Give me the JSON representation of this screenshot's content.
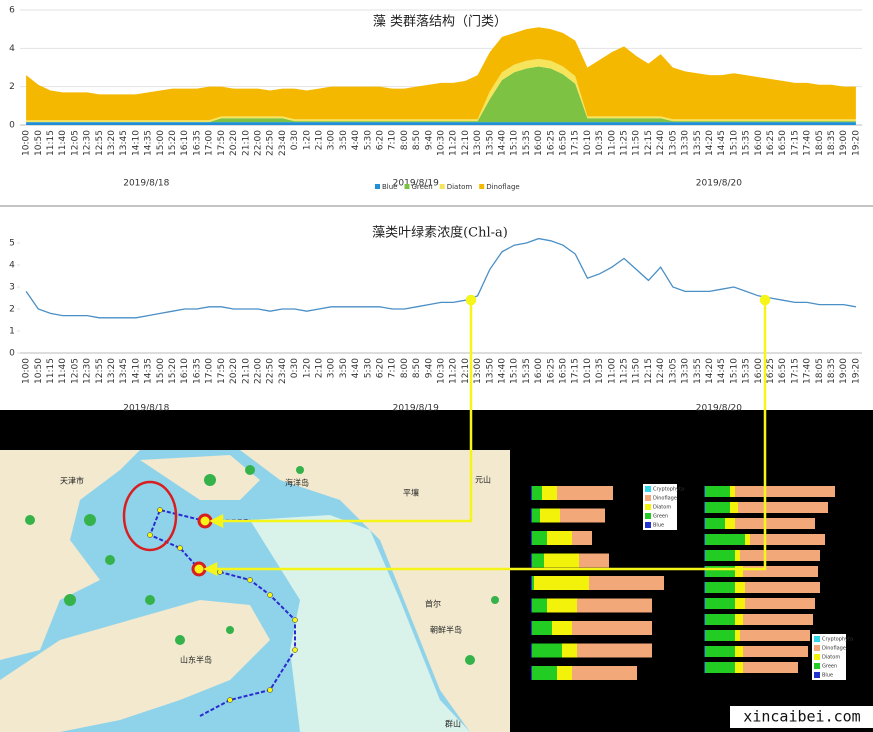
{
  "chart_data": [
    {
      "type": "area",
      "title": "藻 类群落结构（门类）",
      "categories": [
        "10:00",
        "10:50",
        "11:15",
        "11:40",
        "12:05",
        "12:30",
        "12:55",
        "13:20",
        "13:45",
        "14:10",
        "14:35",
        "15:00",
        "15:20",
        "16:10",
        "16:35",
        "17:00",
        "17:50",
        "20:20",
        "21:10",
        "22:00",
        "22:50",
        "23:40",
        "0:30",
        "1:20",
        "2:10",
        "3:00",
        "3:50",
        "4:40",
        "5:30",
        "6:20",
        "7:10",
        "8:00",
        "8:50",
        "9:40",
        "10:30",
        "11:20",
        "12:10",
        "13:00",
        "13:50",
        "14:40",
        "15:10",
        "15:35",
        "16:00",
        "16:25",
        "16:50",
        "17:15",
        "10:10",
        "10:35",
        "11:00",
        "11:25",
        "11:50",
        "12:15",
        "12:40",
        "13:05",
        "13:30",
        "13:55",
        "14:20",
        "14:45",
        "15:10",
        "15:35",
        "16:00",
        "16:25",
        "16:50",
        "17:15",
        "17:40",
        "18:05",
        "18:35",
        "19:00",
        "19:20"
      ],
      "date_labels": [
        "2019/8/18",
        "2019/8/19",
        "2019/8/20"
      ],
      "series": [
        {
          "name": "Blue",
          "color": "#1f8fd8",
          "values": [
            0.15,
            0.15,
            0.15,
            0.15,
            0.15,
            0.15,
            0.15,
            0.15,
            0.15,
            0.15,
            0.15,
            0.15,
            0.15,
            0.15,
            0.15,
            0.15,
            0.15,
            0.15,
            0.15,
            0.15,
            0.15,
            0.15,
            0.15,
            0.15,
            0.15,
            0.15,
            0.15,
            0.15,
            0.15,
            0.15,
            0.15,
            0.15,
            0.15,
            0.15,
            0.15,
            0.15,
            0.15,
            0.15,
            0.15,
            0.15,
            0.15,
            0.15,
            0.15,
            0.15,
            0.15,
            0.15,
            0.15,
            0.15,
            0.15,
            0.15,
            0.15,
            0.15,
            0.15,
            0.15,
            0.15,
            0.15,
            0.15,
            0.15,
            0.15,
            0.15,
            0.15,
            0.15,
            0.15,
            0.15,
            0.15,
            0.15,
            0.15,
            0.15,
            0.15
          ]
        },
        {
          "name": "Green",
          "color": "#7dc242",
          "values": [
            0,
            0,
            0,
            0,
            0,
            0,
            0,
            0,
            0,
            0,
            0,
            0,
            0,
            0,
            0,
            0,
            0.2,
            0.2,
            0.2,
            0.2,
            0.2,
            0.2,
            0.05,
            0.05,
            0.05,
            0.05,
            0.05,
            0.05,
            0.05,
            0.05,
            0.05,
            0.05,
            0.05,
            0.05,
            0.05,
            0.05,
            0.05,
            0.05,
            1.2,
            2.2,
            2.6,
            2.8,
            2.9,
            2.8,
            2.5,
            2.0,
            0.2,
            0.2,
            0.2,
            0.2,
            0.2,
            0.2,
            0.2,
            0.05,
            0.05,
            0.05,
            0.05,
            0.05,
            0.05,
            0.05,
            0.05,
            0.05,
            0.05,
            0.05,
            0.05,
            0.05,
            0.05,
            0.05,
            0.05
          ]
        },
        {
          "name": "Diatom",
          "color": "#f6e45a",
          "values": [
            0.1,
            0.1,
            0.1,
            0.1,
            0.1,
            0.1,
            0.1,
            0.1,
            0.1,
            0.1,
            0.1,
            0.1,
            0.1,
            0.1,
            0.1,
            0.1,
            0.1,
            0.1,
            0.1,
            0.1,
            0.1,
            0.1,
            0.1,
            0.1,
            0.1,
            0.1,
            0.1,
            0.1,
            0.1,
            0.1,
            0.1,
            0.1,
            0.1,
            0.1,
            0.1,
            0.1,
            0.1,
            0.1,
            0.4,
            0.4,
            0.4,
            0.4,
            0.4,
            0.4,
            0.4,
            0.4,
            0.1,
            0.1,
            0.1,
            0.1,
            0.1,
            0.1,
            0.1,
            0.1,
            0.1,
            0.1,
            0.1,
            0.1,
            0.1,
            0.1,
            0.1,
            0.1,
            0.1,
            0.1,
            0.1,
            0.1,
            0.1,
            0.1,
            0.1
          ]
        },
        {
          "name": "Dinoflage",
          "color": "#f5b800",
          "values": [
            2.35,
            1.85,
            1.55,
            1.45,
            1.45,
            1.45,
            1.35,
            1.35,
            1.35,
            1.35,
            1.45,
            1.55,
            1.65,
            1.65,
            1.65,
            1.75,
            1.55,
            1.45,
            1.45,
            1.45,
            1.35,
            1.45,
            1.6,
            1.5,
            1.6,
            1.7,
            1.7,
            1.7,
            1.7,
            1.7,
            1.6,
            1.6,
            1.7,
            1.8,
            1.9,
            1.9,
            2.0,
            2.3,
            2.05,
            1.85,
            1.65,
            1.65,
            1.65,
            1.65,
            1.75,
            1.85,
            2.55,
            2.95,
            3.35,
            3.65,
            3.15,
            2.75,
            3.25,
            2.7,
            2.5,
            2.4,
            2.3,
            2.3,
            2.4,
            2.3,
            2.2,
            2.1,
            2.0,
            1.9,
            1.9,
            1.8,
            1.8,
            1.7,
            1.7
          ]
        }
      ],
      "ylim": [
        0,
        6
      ],
      "yticks": [
        0,
        2,
        4,
        6
      ],
      "grid": true
    },
    {
      "type": "line",
      "title": "藻类叶绿素浓度(Chl-a)",
      "categories": [
        "10:00",
        "10:50",
        "11:15",
        "11:40",
        "12:05",
        "12:30",
        "12:55",
        "13:20",
        "13:45",
        "14:10",
        "14:35",
        "15:00",
        "15:20",
        "16:10",
        "16:35",
        "17:00",
        "17:50",
        "20:20",
        "21:10",
        "22:00",
        "22:50",
        "23:40",
        "0:30",
        "1:20",
        "2:10",
        "3:00",
        "3:50",
        "4:40",
        "5:30",
        "6:20",
        "7:10",
        "8:00",
        "8:50",
        "9:40",
        "10:30",
        "11:20",
        "12:10",
        "13:00",
        "13:50",
        "14:40",
        "15:10",
        "15:35",
        "16:00",
        "16:25",
        "16:50",
        "17:15",
        "10:10",
        "10:35",
        "11:00",
        "11:25",
        "11:50",
        "12:15",
        "12:40",
        "13:05",
        "13:30",
        "13:55",
        "14:20",
        "14:45",
        "15:10",
        "15:35",
        "16:00",
        "16:25",
        "16:50",
        "17:15",
        "17:40",
        "18:05",
        "18:35",
        "19:00",
        "19:20"
      ],
      "date_labels": [
        "2019/8/18",
        "2019/8/19",
        "2019/8/20"
      ],
      "color": "#4a8fc6",
      "values": [
        2.8,
        2.0,
        1.8,
        1.7,
        1.7,
        1.7,
        1.6,
        1.6,
        1.6,
        1.6,
        1.7,
        1.8,
        1.9,
        2.0,
        2.0,
        2.1,
        2.1,
        2.0,
        2.0,
        2.0,
        1.9,
        2.0,
        2.0,
        1.9,
        2.0,
        2.1,
        2.1,
        2.1,
        2.1,
        2.1,
        2.0,
        2.0,
        2.1,
        2.2,
        2.3,
        2.3,
        2.4,
        2.6,
        3.8,
        4.6,
        4.9,
        5.0,
        5.2,
        5.1,
        4.9,
        4.5,
        3.4,
        3.6,
        3.9,
        4.3,
        3.8,
        3.3,
        3.9,
        3.0,
        2.8,
        2.8,
        2.8,
        2.9,
        3.0,
        2.8,
        2.6,
        2.5,
        2.4,
        2.3,
        2.3,
        2.2,
        2.2,
        2.2,
        2.1
      ],
      "ylim": [
        0,
        6
      ],
      "yticks": [
        0,
        1,
        2,
        3,
        4,
        5
      ],
      "grid": false
    },
    {
      "type": "hbar",
      "series": [
        {
          "name": "Cryptophyta",
          "color": "#33d6e8",
          "values": [
            0,
            0,
            0,
            0,
            0,
            0,
            0,
            0,
            0
          ]
        },
        {
          "name": "Dinoflage",
          "color": "#f2a878",
          "values": [
            56,
            45,
            20,
            30,
            75,
            75,
            80,
            75,
            65
          ]
        },
        {
          "name": "Diatom",
          "color": "#f2f20a",
          "values": [
            15,
            20,
            25,
            35,
            55,
            30,
            20,
            15,
            15
          ]
        },
        {
          "name": "Green",
          "color": "#22cc22",
          "values": [
            10,
            8,
            15,
            12,
            2,
            15,
            20,
            30,
            25
          ]
        },
        {
          "name": "Blue",
          "color": "#2233cc",
          "values": [
            1,
            1,
            1,
            1,
            1,
            1,
            1,
            1,
            1
          ]
        }
      ],
      "xlim": [
        0,
        140
      ]
    },
    {
      "type": "hbar",
      "series": [
        {
          "name": "Cryptophyta",
          "color": "#33d6e8",
          "values": [
            0,
            0,
            0,
            0,
            0,
            0,
            0,
            0,
            0,
            0,
            0,
            0
          ]
        },
        {
          "name": "Dinoflage",
          "color": "#f2a878",
          "values": [
            100,
            90,
            80,
            75,
            80,
            75,
            75,
            70,
            70,
            70,
            65,
            55
          ]
        },
        {
          "name": "Diatom",
          "color": "#f2f20a",
          "values": [
            5,
            8,
            10,
            5,
            5,
            8,
            10,
            10,
            8,
            5,
            8,
            8
          ]
        },
        {
          "name": "Green",
          "color": "#22cc22",
          "values": [
            25,
            25,
            20,
            40,
            30,
            30,
            30,
            30,
            30,
            30,
            30,
            30
          ]
        },
        {
          "name": "Blue",
          "color": "#2233cc",
          "values": [
            1,
            1,
            1,
            1,
            1,
            1,
            1,
            1,
            1,
            1,
            1,
            1
          ]
        }
      ],
      "xlim": [
        0,
        140
      ]
    }
  ],
  "map": {
    "labels": [
      "天津市",
      "海洋岛",
      "平壤",
      "元山",
      "首尔",
      "朝鲜半岛",
      "山东半岛",
      "群山"
    ]
  },
  "watermark": "xincaibei.com"
}
